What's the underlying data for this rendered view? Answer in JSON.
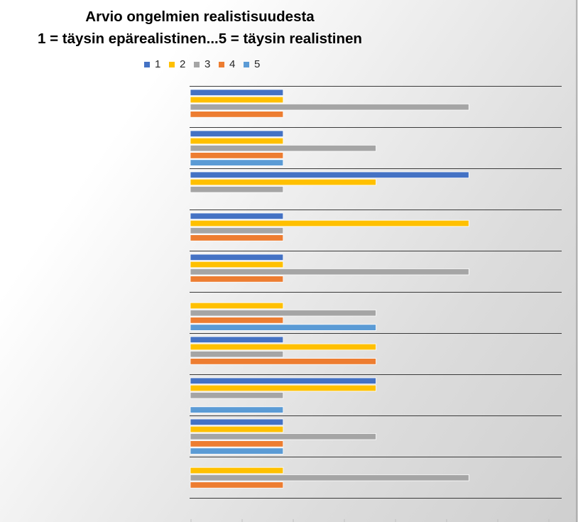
{
  "chart_data": {
    "type": "bar",
    "orientation": "horizontal",
    "title": "Arvio ongelmien realistisuudesta",
    "subtitle": "1 = täysin epärealistinen...5 = täysin realistinen",
    "xlabel": "",
    "ylabel": "",
    "xlim": [
      0,
      4
    ],
    "grid": true,
    "legend": "top",
    "series": [
      {
        "name": "1",
        "color": "#4472C4",
        "values": [
          1,
          1,
          3,
          1,
          1,
          0,
          1,
          2,
          1,
          0
        ]
      },
      {
        "name": "2",
        "color": "#FFC000",
        "values": [
          1,
          1,
          2,
          3,
          1,
          1,
          2,
          2,
          1,
          1
        ]
      },
      {
        "name": "3",
        "color": "#A5A5A5",
        "values": [
          3,
          2,
          1,
          1,
          3,
          2,
          1,
          1,
          2,
          3
        ]
      },
      {
        "name": "4",
        "color": "#ED7D31",
        "values": [
          1,
          1,
          0,
          1,
          1,
          1,
          2,
          0,
          1,
          1
        ]
      },
      {
        "name": "5",
        "color": "#5B9BD5",
        "values": [
          0,
          1,
          0,
          0,
          0,
          2,
          0,
          1,
          1,
          0
        ]
      }
    ]
  }
}
